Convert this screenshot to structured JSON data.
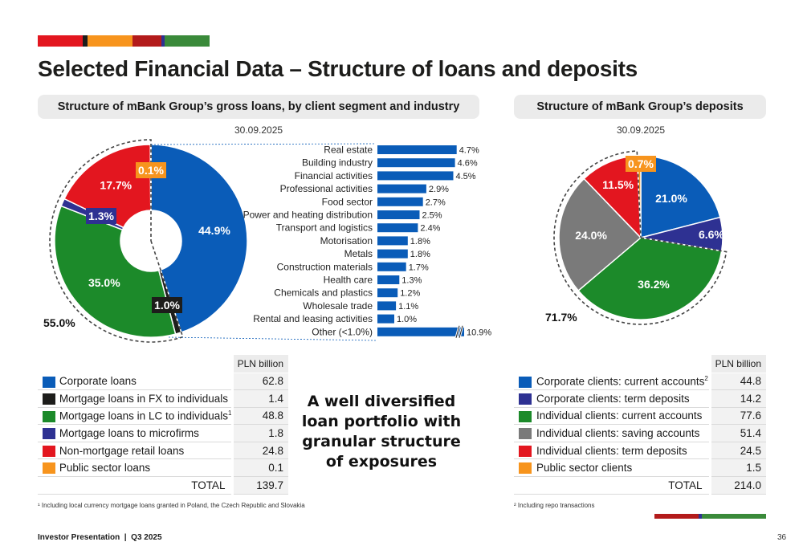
{
  "title": "Selected Financial Data – Structure of loans and deposits",
  "loans_header": "Structure of mBank Group’s gross loans, by client segment and industry",
  "deposits_header": "Structure of mBank Group’s deposits",
  "loans_date": "30.09.2025",
  "deposits_date": "30.09.2025",
  "loans_total_share": "55.0%",
  "deposits_total_share": "71.7%",
  "unit": "PLN billion",
  "total_label": "TOTAL",
  "loans_total": "139.7",
  "deposits_total": "214.0",
  "center_message": [
    "A well diversified",
    "loan portfolio with",
    "granular structure",
    "of exposures"
  ],
  "footnote1": "¹ Including local currency mortgage loans granted in Poland, the Czech Republic and Slovakia",
  "footnote2": "² Including repo transactions",
  "footer": "Investor Presentation  |  Q3 2025",
  "page_number": "36",
  "colors": {
    "blue": "#0a5cb8",
    "black": "#1d1d1b",
    "green": "#1c8a2a",
    "navy": "#2e3192",
    "red": "#e3161f",
    "orange": "#f7941d",
    "gray": "#7a7a7a",
    "darkred": "#b31b1b"
  },
  "loans_table": [
    {
      "label": "Corporate loans",
      "sup": "",
      "value": "62.8",
      "color": "#0a5cb8"
    },
    {
      "label": "Mortgage loans in FX to individuals",
      "sup": "",
      "value": "1.4",
      "color": "#1d1d1b"
    },
    {
      "label": "Mortgage loans in LC to individuals",
      "sup": "1",
      "value": "48.8",
      "color": "#1c8a2a"
    },
    {
      "label": "Mortgage loans to microfirms",
      "sup": "",
      "value": "1.8",
      "color": "#2e3192"
    },
    {
      "label": "Non-mortgage retail loans",
      "sup": "",
      "value": "24.8",
      "color": "#e3161f"
    },
    {
      "label": "Public sector loans",
      "sup": "",
      "value": "0.1",
      "color": "#f7941d"
    }
  ],
  "deposits_table": [
    {
      "label": "Corporate clients: current accounts",
      "sup": "2",
      "value": "44.8",
      "color": "#0a5cb8"
    },
    {
      "label": "Corporate clients: term deposits",
      "sup": "",
      "value": "14.2",
      "color": "#2e3192"
    },
    {
      "label": "Individual clients: current accounts",
      "sup": "",
      "value": "77.6",
      "color": "#1c8a2a"
    },
    {
      "label": "Individual clients: saving accounts",
      "sup": "",
      "value": "51.4",
      "color": "#7a7a7a"
    },
    {
      "label": "Individual clients: term deposits",
      "sup": "",
      "value": "24.5",
      "color": "#e3161f"
    },
    {
      "label": "Public sector clients",
      "sup": "",
      "value": "1.5",
      "color": "#f7941d"
    }
  ],
  "chart_data": [
    {
      "type": "pie",
      "name": "loans_donut",
      "labels": [
        "Corporate loans",
        "Mortgage loans in FX to individuals",
        "Mortgage loans in LC to individuals",
        "Mortgage loans to microfirms",
        "Non-mortgage retail loans",
        "Public sector loans"
      ],
      "values": [
        44.9,
        1.0,
        35.0,
        1.3,
        17.7,
        0.1
      ],
      "value_labels": [
        "44.9%",
        "1.0%",
        "35.0%",
        "1.3%",
        "17.7%",
        "0.1%"
      ],
      "colors": [
        "#0a5cb8",
        "#1d1d1b",
        "#1c8a2a",
        "#2e3192",
        "#e3161f",
        "#f7941d"
      ]
    },
    {
      "type": "bar",
      "name": "corporate_loans_by_industry",
      "orientation": "horizontal",
      "categories": [
        "Real estate",
        "Building industry",
        "Financial activities",
        "Professional activities",
        "Food sector",
        "Power and heating distribution",
        "Transport and logistics",
        "Motorisation",
        "Metals",
        "Construction materials",
        "Health care",
        "Chemicals and plastics",
        "Wholesale trade",
        "Rental and leasing activities",
        "Other (<1.0%)"
      ],
      "values": [
        4.7,
        4.6,
        4.5,
        2.9,
        2.7,
        2.5,
        2.4,
        1.8,
        1.8,
        1.7,
        1.3,
        1.2,
        1.1,
        1.0,
        10.9
      ],
      "value_labels": [
        "4.7%",
        "4.6%",
        "4.5%",
        "2.9%",
        "2.7%",
        "2.5%",
        "2.4%",
        "1.8%",
        "1.8%",
        "1.7%",
        "1.3%",
        "1.2%",
        "1.1%",
        "1.0%",
        "10.9%"
      ],
      "axis_break_on_last": true,
      "color": "#0a5cb8"
    },
    {
      "type": "pie",
      "name": "deposits_donut",
      "labels": [
        "Corporate clients: current accounts",
        "Corporate clients: term deposits",
        "Individual clients: current accounts",
        "Individual clients: saving accounts",
        "Individual clients: term deposits",
        "Public sector clients"
      ],
      "values": [
        21.0,
        6.6,
        36.2,
        24.0,
        11.5,
        0.7
      ],
      "value_labels": [
        "21.0%",
        "6.6%",
        "36.2%",
        "24.0%",
        "11.5%",
        "0.7%"
      ],
      "colors": [
        "#0a5cb8",
        "#2e3192",
        "#1c8a2a",
        "#7a7a7a",
        "#e3161f",
        "#f7941d"
      ]
    }
  ]
}
